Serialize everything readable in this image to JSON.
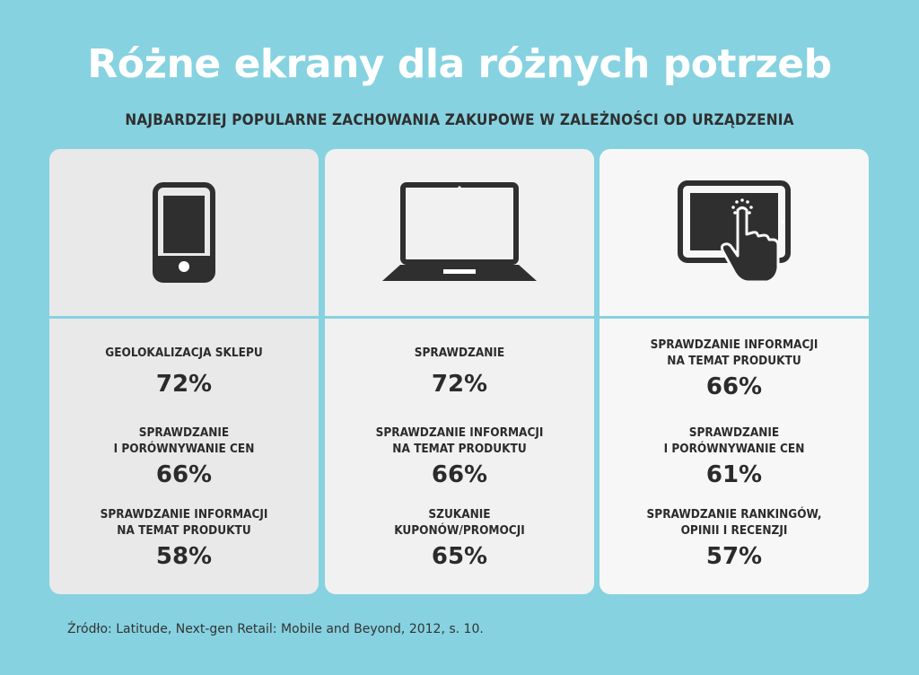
{
  "title": "Różne ekrany dla różnych potrzeb",
  "subtitle": "NAJBARDZIEJ POPULARNE ZACHOWANIA ZAKUPOWE W ZALEŻNOŚCI OD URZĄDZENIA",
  "source": "Źródło: Latitude, Next-gen Retail: Mobile and Beyond, 2012, s. 10.",
  "colors": {
    "background": "#86d2e0",
    "title": "#ffffff",
    "text": "#2b2b2b",
    "icon": "#2f2f2f"
  },
  "chart_data": {
    "type": "table",
    "title": "Różne ekrany dla różnych potrzeb",
    "subtitle": "NAJBARDZIEJ POPULARNE ZACHOWANIA ZAKUPOWE W ZALEŻNOŚCI OD URZĄDZENIA",
    "panels": [
      {
        "icon": "smartphone-icon",
        "items": [
          {
            "label": "GEOLOKALIZACJA SKLEPU",
            "value": 72,
            "display": "72%"
          },
          {
            "label": "SPRAWDZANIE\nI PORÓWNYWANIE CEN",
            "value": 66,
            "display": "66%"
          },
          {
            "label": "SPRAWDZANIE INFORMACJI\nNA TEMAT PRODUKTU",
            "value": 58,
            "display": "58%"
          }
        ]
      },
      {
        "icon": "laptop-icon",
        "items": [
          {
            "label": "SPRAWDZANIE",
            "value": 72,
            "display": "72%"
          },
          {
            "label": "SPRAWDZANIE INFORMACJI\nNA TEMAT PRODUKTU",
            "value": 66,
            "display": "66%"
          },
          {
            "label": "SZUKANIE\nKUPONÓW/PROMOCJI",
            "value": 65,
            "display": "65%"
          }
        ]
      },
      {
        "icon": "tablet-touch-icon",
        "items": [
          {
            "label": "SPRAWDZANIE INFORMACJI\nNA TEMAT PRODUKTU",
            "value": 66,
            "display": "66%"
          },
          {
            "label": "SPRAWDZANIE\nI PORÓWNYWANIE CEN",
            "value": 61,
            "display": "61%"
          },
          {
            "label": "SPRAWDZANIE RANKINGÓW,\nOPINII I RECENZJI",
            "value": 57,
            "display": "57%"
          }
        ]
      }
    ]
  }
}
